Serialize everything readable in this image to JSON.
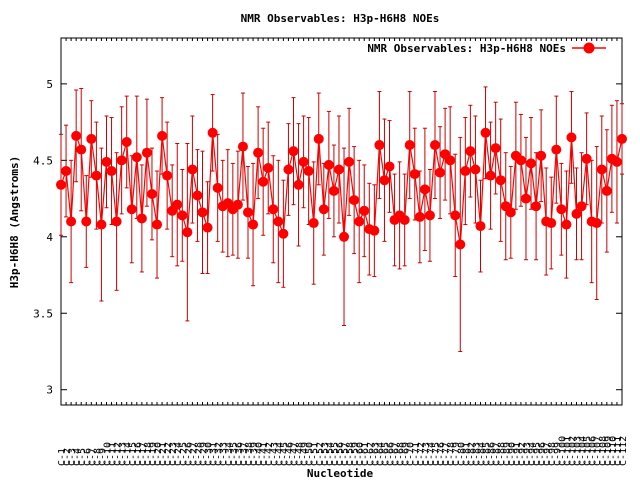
{
  "chart_data": {
    "type": "line",
    "title": "NMR Observables: H3p-H6H8 NOEs",
    "xlabel": "Nucleotide",
    "ylabel": "H3p-H6H8 (Angstroms)",
    "legend": {
      "label": "NMR Observables: H3p-H6H8 NOEs",
      "placement": "top-right"
    },
    "ylim": [
      2.9,
      5.3
    ],
    "yticks": [
      3,
      3.5,
      4,
      4.5,
      5
    ],
    "ytick_labels": [
      "3",
      "3.5",
      "4",
      "4.5",
      "5"
    ],
    "xlim": [
      1,
      112
    ],
    "first_category": "C-1",
    "last_category": "C-112",
    "series": [
      {
        "name": "NMR Observables: H3p-H6H8 NOEs",
        "color": "#ff0000",
        "error_color": "#cc0000",
        "x": [
          1,
          2,
          3,
          4,
          5,
          6,
          7,
          8,
          9,
          10,
          11,
          12,
          13,
          14,
          15,
          16,
          17,
          18,
          19,
          20,
          21,
          22,
          23,
          24,
          25,
          26,
          27,
          28,
          29,
          30,
          31,
          32,
          33,
          34,
          35,
          36,
          37,
          38,
          39,
          40,
          41,
          42,
          43,
          44,
          45,
          46,
          47,
          48,
          49,
          50,
          51,
          52,
          53,
          54,
          55,
          56,
          57,
          58,
          59,
          60,
          61,
          62,
          63,
          64,
          65,
          66,
          67,
          68,
          69,
          70,
          71,
          72,
          73,
          74,
          75,
          76,
          77,
          78,
          79,
          80,
          81,
          82,
          83,
          84,
          85,
          86,
          87,
          88,
          89,
          90,
          91,
          92,
          93,
          94,
          95,
          96,
          97,
          98,
          99,
          100,
          101,
          102,
          103,
          104,
          105,
          106,
          107,
          108,
          109,
          110,
          111,
          112
        ],
        "y": [
          4.34,
          4.43,
          4.1,
          4.66,
          4.57,
          4.1,
          4.64,
          4.4,
          4.08,
          4.49,
          4.43,
          4.1,
          4.5,
          4.62,
          4.18,
          4.52,
          4.12,
          4.55,
          4.28,
          4.08,
          4.66,
          4.4,
          4.17,
          4.21,
          4.14,
          4.03,
          4.44,
          4.27,
          4.16,
          4.06,
          4.68,
          4.32,
          4.2,
          4.22,
          4.18,
          4.21,
          4.59,
          4.16,
          4.08,
          4.55,
          4.36,
          4.45,
          4.18,
          4.1,
          4.02,
          4.44,
          4.56,
          4.34,
          4.49,
          4.43,
          4.09,
          4.64,
          4.18,
          4.47,
          4.3,
          4.44,
          4.0,
          4.49,
          4.24,
          4.1,
          4.17,
          4.05,
          4.04,
          4.6,
          4.37,
          4.46,
          4.11,
          4.14,
          4.11,
          4.6,
          4.41,
          4.13,
          4.31,
          4.14,
          4.6,
          4.42,
          4.54,
          4.5,
          4.14,
          3.95,
          4.43,
          4.56,
          4.44,
          4.07,
          4.68,
          4.4,
          4.58,
          4.37,
          4.2,
          4.16,
          4.53,
          4.5,
          4.25,
          4.48,
          4.2,
          4.53,
          4.1,
          4.09,
          4.57,
          4.18,
          4.08,
          4.65,
          4.15,
          4.2,
          4.51,
          4.1,
          4.09,
          4.44,
          4.3,
          4.51,
          4.49,
          4.64
        ],
        "err": [
          0.33,
          0.3,
          0.4,
          0.3,
          0.4,
          0.3,
          0.25,
          0.35,
          0.5,
          0.3,
          0.35,
          0.45,
          0.35,
          0.3,
          0.35,
          0.4,
          0.35,
          0.35,
          0.3,
          0.35,
          0.25,
          0.35,
          0.3,
          0.4,
          0.3,
          0.58,
          0.35,
          0.3,
          0.4,
          0.3,
          0.25,
          0.35,
          0.3,
          0.35,
          0.3,
          0.35,
          0.35,
          0.3,
          0.4,
          0.3,
          0.35,
          0.3,
          0.35,
          0.4,
          0.35,
          0.3,
          0.35,
          0.4,
          0.3,
          0.35,
          0.4,
          0.3,
          0.3,
          0.35,
          0.3,
          0.35,
          0.58,
          0.35,
          0.35,
          0.4,
          0.3,
          0.3,
          0.3,
          0.35,
          0.4,
          0.3,
          0.3,
          0.35,
          0.3,
          0.35,
          0.3,
          0.3,
          0.4,
          0.3,
          0.35,
          0.3,
          0.3,
          0.35,
          0.4,
          0.7,
          0.35,
          0.3,
          0.35,
          0.3,
          0.3,
          0.35,
          0.3,
          0.4,
          0.35,
          0.3,
          0.35,
          0.3,
          0.4,
          0.3,
          0.35,
          0.3,
          0.35,
          0.3,
          0.35,
          0.3,
          0.35,
          0.3,
          0.3,
          0.35,
          0.3,
          0.4,
          0.5,
          0.35,
          0.4,
          0.35,
          0.4,
          0.23
        ]
      }
    ]
  }
}
